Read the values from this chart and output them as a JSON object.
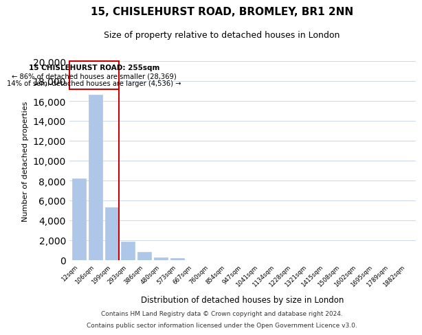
{
  "title": "15, CHISLEHURST ROAD, BROMLEY, BR1 2NN",
  "subtitle": "Size of property relative to detached houses in London",
  "xlabel": "Distribution of detached houses by size in London",
  "ylabel": "Number of detached properties",
  "bar_labels": [
    "12sqm",
    "106sqm",
    "199sqm",
    "293sqm",
    "386sqm",
    "480sqm",
    "573sqm",
    "667sqm",
    "760sqm",
    "854sqm",
    "947sqm",
    "1041sqm",
    "1134sqm",
    "1228sqm",
    "1321sqm",
    "1415sqm",
    "1508sqm",
    "1602sqm",
    "1695sqm",
    "1789sqm",
    "1882sqm"
  ],
  "bar_values": [
    8200,
    16600,
    5300,
    1850,
    800,
    280,
    230,
    0,
    0,
    0,
    0,
    0,
    0,
    0,
    0,
    0,
    0,
    0,
    0,
    0,
    0
  ],
  "bar_color": "#aec6e8",
  "highlight_color": "#cc0000",
  "annotation_title": "15 CHISLEHURST ROAD: 255sqm",
  "annotation_line1": "← 86% of detached houses are smaller (28,369)",
  "annotation_line2": "14% of semi-detached houses are larger (4,536) →",
  "ylim": [
    0,
    20000
  ],
  "yticks": [
    0,
    2000,
    4000,
    6000,
    8000,
    10000,
    12000,
    14000,
    16000,
    18000,
    20000
  ],
  "footnote1": "Contains HM Land Registry data © Crown copyright and database right 2024.",
  "footnote2": "Contains public sector information licensed under the Open Government Licence v3.0.",
  "background_color": "#ffffff",
  "grid_color": "#cdd8ea"
}
